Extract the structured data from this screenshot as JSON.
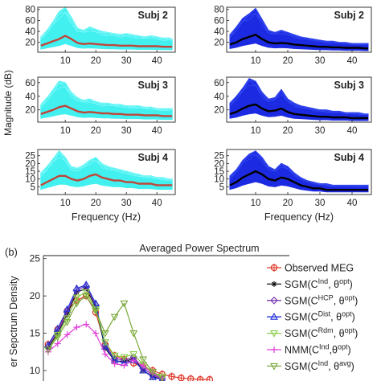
{
  "panel_b_letter": "(b)",
  "colors": {
    "band_left": "#39f0f0",
    "band_right": "#1020e0",
    "mean_left": "#c0463a",
    "mean_right": "#000000",
    "series": [
      "#e03a2c",
      "#111111",
      "#7a39b0",
      "#1f2fd8",
      "#88cc44",
      "#e040d8",
      "#7aa83a"
    ]
  },
  "chart_data": [
    {
      "type": "area",
      "ylabel": "Magnitude (dB)",
      "xlabel": "Frequency (Hz)",
      "xlim": [
        1,
        46
      ],
      "xticks": [
        10,
        20,
        30,
        40
      ],
      "grid": false,
      "panels": [
        {
          "subject": "Subj 2",
          "column": "left",
          "ylim": [
            2,
            84
          ],
          "yticks": [
            20,
            40,
            60,
            80
          ],
          "x": [
            2,
            4,
            6,
            8,
            10,
            12,
            14,
            16,
            18,
            20,
            22,
            24,
            26,
            28,
            30,
            32,
            34,
            36,
            38,
            40,
            42,
            44,
            45
          ],
          "upper": [
            30,
            42,
            58,
            76,
            84,
            66,
            46,
            42,
            48,
            44,
            40,
            38,
            36,
            34,
            36,
            34,
            32,
            30,
            32,
            30,
            28,
            28,
            26
          ],
          "mean": [
            14,
            18,
            22,
            26,
            32,
            26,
            19,
            17,
            18,
            17,
            16,
            15,
            15,
            14,
            14,
            14,
            13,
            13,
            13,
            13,
            12,
            12,
            12
          ]
        },
        {
          "subject": "Subj 3",
          "column": "left",
          "ylim": [
            2,
            68
          ],
          "yticks": [
            20,
            40,
            60
          ],
          "x": [
            2,
            4,
            6,
            8,
            10,
            12,
            14,
            16,
            18,
            20,
            22,
            24,
            26,
            28,
            30,
            32,
            34,
            36,
            38,
            40,
            42,
            44,
            45
          ],
          "upper": [
            28,
            38,
            50,
            62,
            60,
            46,
            38,
            34,
            36,
            32,
            30,
            30,
            28,
            28,
            26,
            26,
            26,
            24,
            24,
            22,
            22,
            22,
            22
          ],
          "mean": [
            14,
            17,
            20,
            24,
            26,
            22,
            18,
            16,
            17,
            16,
            15,
            15,
            14,
            14,
            13,
            13,
            13,
            12,
            12,
            12,
            11,
            11,
            11
          ]
        },
        {
          "subject": "Subj 4",
          "column": "left",
          "ylim": [
            0,
            29
          ],
          "yticks": [
            5,
            10,
            15,
            20,
            25
          ],
          "x": [
            2,
            4,
            6,
            8,
            10,
            12,
            14,
            16,
            18,
            20,
            22,
            24,
            26,
            28,
            30,
            32,
            34,
            36,
            38,
            40,
            42,
            44,
            45
          ],
          "upper": [
            14,
            18,
            23,
            28,
            24,
            18,
            17,
            19,
            22,
            24,
            20,
            18,
            17,
            16,
            15,
            14,
            13,
            12,
            12,
            11,
            11,
            10,
            10
          ],
          "mean": [
            6,
            8,
            10,
            12,
            12,
            10,
            9,
            10,
            12,
            13,
            11,
            10,
            9,
            9,
            8,
            8,
            7,
            7,
            7,
            6,
            6,
            6,
            6
          ]
        },
        {
          "subject": "Subj 2",
          "column": "right",
          "ylim": [
            2,
            84
          ],
          "yticks": [
            20,
            40,
            60,
            80
          ],
          "x": [
            2,
            4,
            6,
            8,
            10,
            12,
            14,
            16,
            18,
            20,
            22,
            24,
            26,
            28,
            30,
            32,
            34,
            36,
            38,
            40,
            42,
            44,
            45
          ],
          "upper": [
            34,
            48,
            64,
            72,
            82,
            62,
            42,
            38,
            42,
            38,
            34,
            30,
            28,
            26,
            24,
            22,
            22,
            20,
            20,
            18,
            18,
            18,
            18
          ],
          "mean": [
            16,
            20,
            26,
            30,
            34,
            26,
            20,
            18,
            19,
            18,
            16,
            15,
            14,
            13,
            12,
            12,
            11,
            11,
            10,
            10,
            10,
            9,
            9
          ]
        },
        {
          "subject": "Subj 3",
          "column": "right",
          "ylim": [
            2,
            68
          ],
          "yticks": [
            20,
            40,
            60
          ],
          "x": [
            2,
            4,
            6,
            8,
            10,
            12,
            14,
            16,
            18,
            20,
            22,
            24,
            26,
            28,
            30,
            32,
            34,
            36,
            38,
            40,
            42,
            44,
            45
          ],
          "upper": [
            30,
            40,
            52,
            66,
            62,
            46,
            36,
            38,
            50,
            36,
            30,
            26,
            24,
            22,
            20,
            20,
            18,
            18,
            16,
            16,
            16,
            14,
            14
          ],
          "mean": [
            14,
            17,
            22,
            26,
            28,
            22,
            18,
            19,
            22,
            17,
            14,
            13,
            12,
            11,
            10,
            10,
            9,
            9,
            9,
            8,
            8,
            8,
            8
          ]
        },
        {
          "subject": "Subj 4",
          "column": "right",
          "ylim": [
            0,
            29
          ],
          "yticks": [
            5,
            10,
            15,
            20,
            25
          ],
          "x": [
            2,
            4,
            6,
            8,
            10,
            12,
            14,
            16,
            18,
            20,
            22,
            24,
            26,
            28,
            30,
            32,
            34,
            36,
            38,
            40,
            42,
            44,
            45
          ],
          "upper": [
            12,
            16,
            22,
            26,
            28,
            24,
            18,
            16,
            20,
            18,
            14,
            11,
            9,
            8,
            7,
            7,
            6,
            6,
            6,
            6,
            6,
            6,
            6
          ],
          "mean": [
            6,
            8,
            11,
            13,
            15,
            13,
            10,
            9,
            11,
            10,
            8,
            6,
            5,
            4,
            4,
            3,
            3,
            3,
            3,
            3,
            3,
            3,
            3
          ]
        }
      ]
    },
    {
      "type": "line",
      "title": "Averaged Power Spectrum",
      "ylabel": "er Sepctrum Density",
      "ylim": [
        8.6,
        25.4
      ],
      "yticks": [
        10,
        15,
        20,
        25
      ],
      "xlim": [
        1,
        46
      ],
      "legend_position": "right",
      "series": [
        {
          "name_base": "Observed MEG",
          "name_sup": "",
          "x": [
            2,
            4,
            6,
            8,
            10,
            12,
            14,
            16,
            18,
            20,
            22,
            24,
            26,
            28,
            30,
            32,
            34,
            36
          ],
          "values": [
            13.5,
            15.5,
            18,
            19.4,
            20,
            17.8,
            13.5,
            12,
            11.5,
            11,
            10.5,
            10,
            9.5,
            9.2,
            9,
            8.9,
            8.8,
            8.8
          ]
        },
        {
          "name_base": "SGM(C",
          "name_sup": "Ind",
          "name_mid": ", θ",
          "name_sup2": "opt",
          "name_end": ")",
          "x": [
            2,
            4,
            6,
            8,
            10,
            12,
            14,
            16,
            18,
            20,
            22,
            24,
            26
          ],
          "values": [
            13,
            15,
            17.5,
            20.5,
            21,
            18.5,
            13,
            11.3,
            11.2,
            11.6,
            10,
            9.2,
            8.8
          ]
        },
        {
          "name_base": "SGM(C",
          "name_sup": "HCP",
          "name_mid": ", θ",
          "name_sup2": "opt",
          "name_end": ")",
          "x": [
            2,
            4,
            6,
            8,
            10,
            12,
            14,
            16,
            18,
            20,
            22,
            24,
            26
          ],
          "values": [
            13.2,
            15.2,
            17.8,
            20.8,
            21.3,
            18.8,
            13.4,
            11.6,
            11.4,
            11.8,
            10.3,
            9.4,
            8.9
          ]
        },
        {
          "name_base": "SGM(C",
          "name_sup": "Dist",
          "name_mid": ", θ",
          "name_sup2": "opt",
          "name_end": ")",
          "x": [
            2,
            4,
            6,
            8,
            10,
            12,
            14,
            16,
            18,
            20,
            22,
            24,
            26
          ],
          "values": [
            13.4,
            15.6,
            18.2,
            21,
            21.5,
            19,
            13.2,
            11.4,
            11,
            11.4,
            10,
            9.1,
            8.8
          ]
        },
        {
          "name_base": "SGM(C",
          "name_sup": "Rdm",
          "name_mid": ", θ",
          "name_sup2": "opt",
          "name_end": ")",
          "x": [
            2,
            4,
            6,
            8,
            10,
            12,
            14,
            16,
            18,
            20,
            22,
            24,
            26
          ],
          "values": [
            12.8,
            14.8,
            17,
            19.8,
            20.5,
            18.2,
            13.8,
            12,
            11.8,
            12.2,
            10.8,
            9.8,
            9.2
          ]
        },
        {
          "name_base": "NMM(C",
          "name_sup": "Ind",
          "name_mid": ",θ",
          "name_sup2": "opt",
          "name_end": ")",
          "x": [
            2,
            4,
            6,
            8,
            10,
            12,
            14,
            16,
            18,
            20,
            22,
            24,
            26
          ],
          "values": [
            12.5,
            13.6,
            14.8,
            15.8,
            16.2,
            15,
            12.2,
            10.9,
            10.7,
            11.4,
            10.6,
            9.6,
            9
          ]
        },
        {
          "name_base": "SGM(C",
          "name_sup": "Ind",
          "name_mid": ", θ",
          "name_sup2": "avg",
          "name_end": ")",
          "x": [
            2,
            4,
            6,
            8,
            10,
            12,
            14,
            16,
            18,
            20,
            22,
            24,
            26
          ],
          "values": [
            12.8,
            14.5,
            16.5,
            19,
            20,
            18,
            15,
            17.2,
            19,
            15,
            11.5,
            9.8,
            9
          ]
        }
      ]
    }
  ]
}
